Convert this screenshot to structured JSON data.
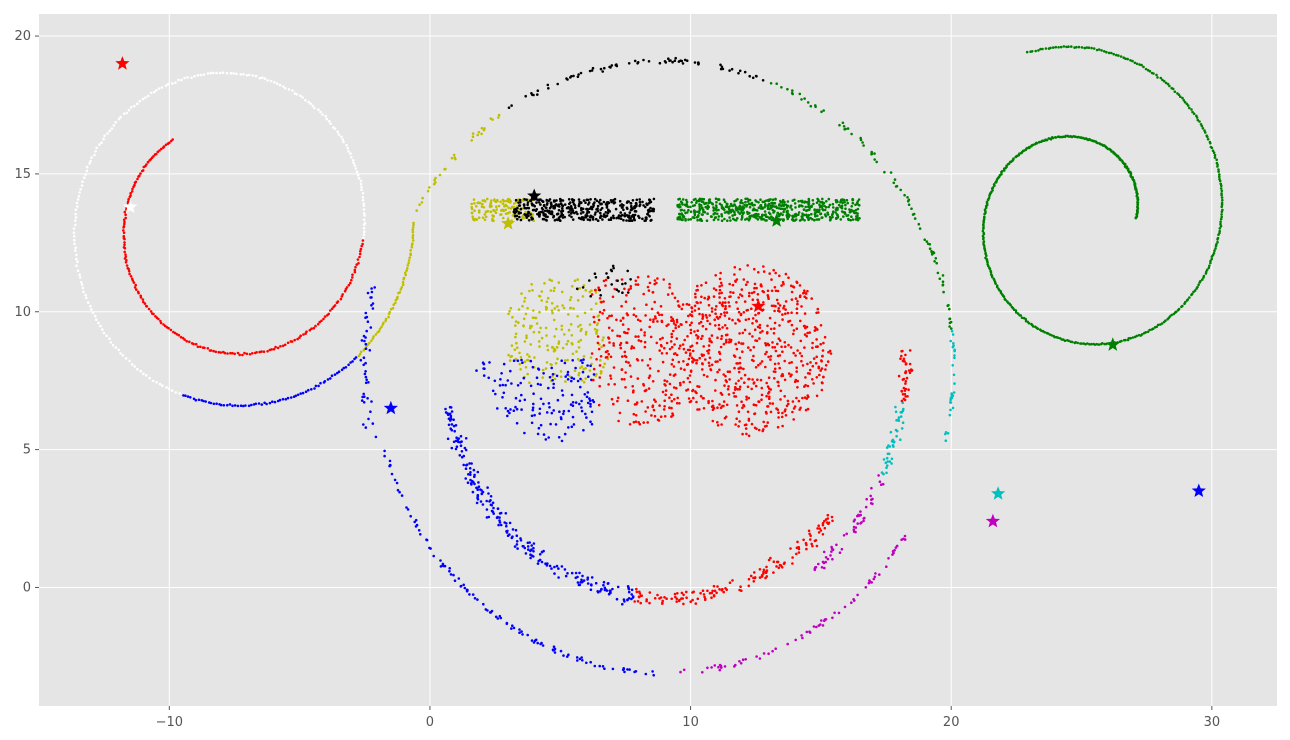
{
  "chart_data": {
    "type": "scatter",
    "title": "",
    "xlabel": "",
    "ylabel": "",
    "xlim": [
      -15,
      32.5
    ],
    "ylim": [
      -4.3,
      20.8
    ],
    "grid": true,
    "style": "ggplot",
    "x_ticks": [
      -10,
      0,
      10,
      20,
      30
    ],
    "y_ticks": [
      0,
      5,
      10,
      15,
      20
    ],
    "x_tick_labels": [
      "−10",
      "0",
      "10",
      "20",
      "30"
    ],
    "y_tick_labels": [
      "0",
      "5",
      "10",
      "15",
      "20"
    ],
    "colors": {
      "red": "#ff0000",
      "white": "#ffffff",
      "blue": "#0000ff",
      "yellow": "#bfbf00",
      "black": "#000000",
      "green": "#008000",
      "cyan": "#00bfbf",
      "magenta": "#bf00bf",
      "background": "#e5e5e5",
      "grid": "#ffffff"
    },
    "clusters": [
      {
        "shape": "arc",
        "color": "red",
        "center": [
          -7.6,
          13.1
        ],
        "a": 3.2,
        "b": 0.3,
        "t_start": 2.2,
        "t_end": 6.2,
        "count": 200,
        "jitter": 0.04,
        "sort_key": 0
      },
      {
        "shape": "arc",
        "color": "white",
        "center": [
          -7.6,
          13.1
        ],
        "a": 3.2,
        "b": 0.3,
        "t_start": 6.2,
        "t_end": 10.7,
        "count": 200,
        "jitter": 0.04,
        "sort_key": 1
      },
      {
        "shape": "arc",
        "color": "blue",
        "center": [
          -7.6,
          13.1
        ],
        "a": 3.2,
        "b": 0.3,
        "t_start": 10.7,
        "t_end": 11.8,
        "count": 70,
        "jitter": 0.04,
        "sort_key": 2
      },
      {
        "shape": "arc",
        "color": "yellow",
        "center": [
          -7.6,
          13.1
        ],
        "a": 3.2,
        "b": 0.3,
        "t_start": 11.8,
        "t_end": 12.6,
        "count": 60,
        "jitter": 0.04,
        "sort_key": 3
      },
      {
        "shape": "arc",
        "color": "green",
        "center": [
          25.0,
          13.4
        ],
        "a": 2.1,
        "b": 0.52,
        "t_start": 0.0,
        "t_end": 8.2,
        "count": 520,
        "jitter": 0.03,
        "sort_key": 4
      },
      {
        "shape": "ring",
        "color": "black",
        "center": [
          9.0,
          8.0
        ],
        "radius": 11.1,
        "deg_start": 70,
        "deg_end": 123,
        "count": 70,
        "jitter": 0.12,
        "sort_key": 5
      },
      {
        "shape": "ring",
        "color": "green",
        "center": [
          9.0,
          8.0
        ],
        "radius": 11.1,
        "deg_start": 7,
        "deg_end": 70,
        "count": 80,
        "jitter": 0.12,
        "sort_key": 6
      },
      {
        "shape": "ring",
        "color": "cyan",
        "center": [
          9.0,
          8.0
        ],
        "radius": 11.1,
        "deg_start": -15,
        "deg_end": 7,
        "count": 30,
        "jitter": 0.12,
        "sort_key": 7
      },
      {
        "shape": "ring",
        "color": "magenta",
        "center": [
          9.0,
          8.0
        ],
        "radius": 11.1,
        "deg_start": -87,
        "deg_end": -33,
        "count": 70,
        "jitter": 0.12,
        "sort_key": 8
      },
      {
        "shape": "ring",
        "color": "blue",
        "center": [
          9.0,
          8.0
        ],
        "radius": 11.1,
        "deg_start": 195,
        "deg_end": 268,
        "count": 110,
        "jitter": 0.12,
        "sort_key": 9
      },
      {
        "shape": "ring",
        "color": "yellow",
        "center": [
          9.0,
          8.0
        ],
        "radius": 11.1,
        "deg_start": 124,
        "deg_end": 150,
        "count": 30,
        "jitter": 0.12,
        "sort_key": 10
      },
      {
        "shape": "ring",
        "color": "blue",
        "center": [
          9.0,
          8.0
        ],
        "radius": 11.5,
        "deg_start": 165,
        "deg_end": 193,
        "count": 45,
        "jitter": 0.25,
        "sort_key": 11
      },
      {
        "shape": "ring",
        "color": "blue",
        "center": [
          9.0,
          8.0
        ],
        "radius": 8.4,
        "deg_start": 190,
        "deg_end": 262,
        "count": 230,
        "jitter": 0.38,
        "sort_key": 12
      },
      {
        "shape": "ring",
        "color": "red",
        "center": [
          9.0,
          8.0
        ],
        "radius": 8.4,
        "deg_start": 262,
        "deg_end": 320,
        "count": 150,
        "jitter": 0.35,
        "sort_key": 13
      },
      {
        "shape": "ring",
        "color": "magenta",
        "center": [
          9.0,
          8.0
        ],
        "radius": 9.3,
        "deg_start": 308,
        "deg_end": 335,
        "count": 55,
        "jitter": 0.3,
        "sort_key": 14
      },
      {
        "shape": "ring",
        "color": "cyan",
        "center": [
          9.0,
          8.0
        ],
        "radius": 9.2,
        "deg_start": 335,
        "deg_end": 352,
        "count": 45,
        "jitter": 0.3,
        "sort_key": 15
      },
      {
        "shape": "ring",
        "color": "red",
        "center": [
          9.0,
          8.0
        ],
        "radius": 9.3,
        "deg_start": 352,
        "deg_end": 5,
        "count": 40,
        "jitter": 0.3,
        "sort_key": 16
      },
      {
        "shape": "rect",
        "color": "yellow",
        "x_range": [
          1.6,
          4.0
        ],
        "y_range": [
          13.3,
          14.1
        ],
        "count": 130,
        "sort_key": 17
      },
      {
        "shape": "rect",
        "color": "black",
        "x_range": [
          3.2,
          8.6
        ],
        "y_range": [
          13.3,
          14.1
        ],
        "count": 400,
        "sort_key": 18
      },
      {
        "shape": "rect",
        "color": "green",
        "x_range": [
          9.5,
          16.5
        ],
        "y_range": [
          13.3,
          14.1
        ],
        "count": 600,
        "sort_key": 19
      },
      {
        "shape": "disc",
        "color": "yellow",
        "center": [
          5.0,
          9.1
        ],
        "radius": 2.2,
        "y_min": 7.4,
        "x_max": 6.9,
        "count": 210,
        "sort_key": 20
      },
      {
        "shape": "disc",
        "color": "blue",
        "center": [
          5.0,
          8.6
        ],
        "radius": 3.3,
        "y_max": 8.3,
        "x_max": 6.3,
        "count": 150,
        "sort_key": 21
      },
      {
        "shape": "disc",
        "color": "red",
        "center": [
          7.9,
          8.6
        ],
        "radius": 2.8,
        "x_min": 6.2,
        "x_max": 9.6,
        "count": 260,
        "sort_key": 22
      },
      {
        "shape": "disc",
        "color": "red",
        "center": [
          12.3,
          8.6
        ],
        "radius": 3.1,
        "x_min": 9.0,
        "count": 680,
        "sort_key": 23
      },
      {
        "shape": "disc",
        "color": "black",
        "center": [
          7.0,
          10.3
        ],
        "radius": 1.5,
        "y_min": 10.5,
        "x_min": 5.5,
        "x_max": 7.7,
        "count": 25,
        "sort_key": 24
      }
    ],
    "centroids": [
      {
        "color": "red",
        "x": -11.8,
        "y": 19.0
      },
      {
        "color": "white",
        "x": -11.5,
        "y": 13.8
      },
      {
        "color": "blue",
        "x": -1.5,
        "y": 6.5
      },
      {
        "color": "black",
        "x": 4.0,
        "y": 14.2
      },
      {
        "color": "yellow",
        "x": 3.0,
        "y": 13.2
      },
      {
        "color": "green",
        "x": 13.3,
        "y": 13.3
      },
      {
        "color": "red",
        "x": 12.6,
        "y": 10.2
      },
      {
        "color": "green",
        "x": 26.2,
        "y": 8.8
      },
      {
        "color": "cyan",
        "x": 21.8,
        "y": 3.4
      },
      {
        "color": "magenta",
        "x": 21.6,
        "y": 2.4
      },
      {
        "color": "blue",
        "x": 29.5,
        "y": 3.5
      }
    ]
  }
}
